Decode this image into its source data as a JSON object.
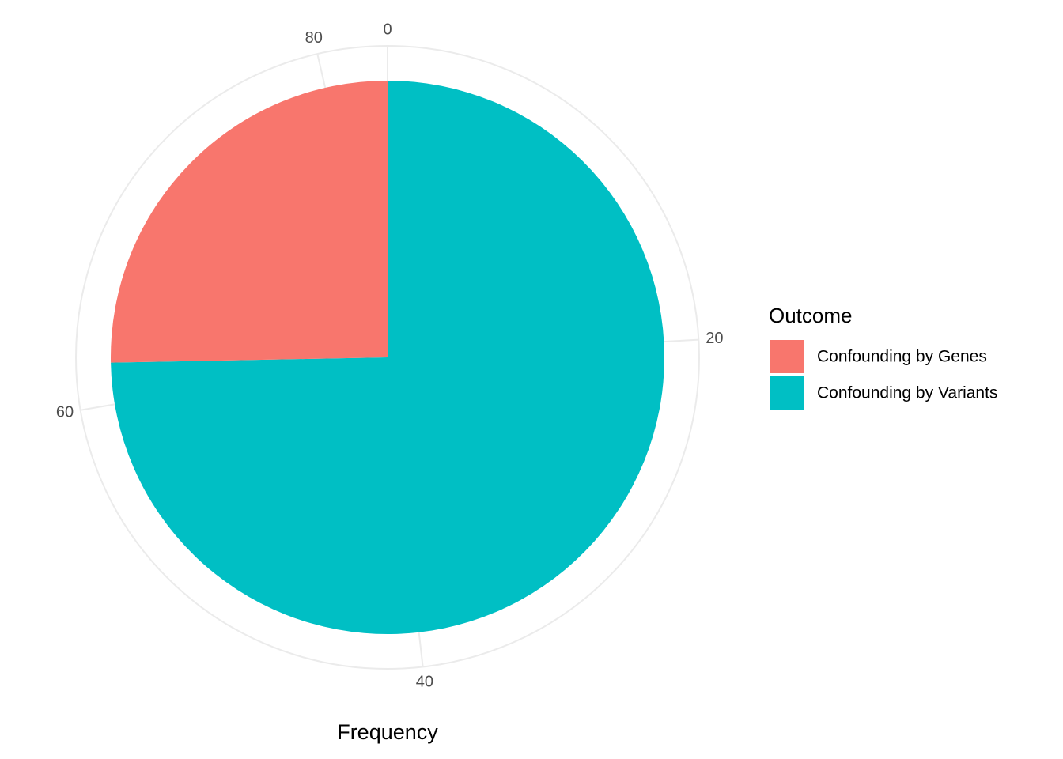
{
  "chart_data": {
    "type": "pie",
    "x_label": "Frequency",
    "legend_title": "Outcome",
    "categories": [
      "Confounding by Genes",
      "Confounding by Variants"
    ],
    "values": [
      21,
      62
    ],
    "colors": [
      "#f8766d",
      "#00bfc4"
    ],
    "ylim": [
      0,
      83
    ],
    "yticks": [
      0,
      20,
      40,
      60,
      80
    ],
    "grid": true,
    "legend": "right"
  }
}
